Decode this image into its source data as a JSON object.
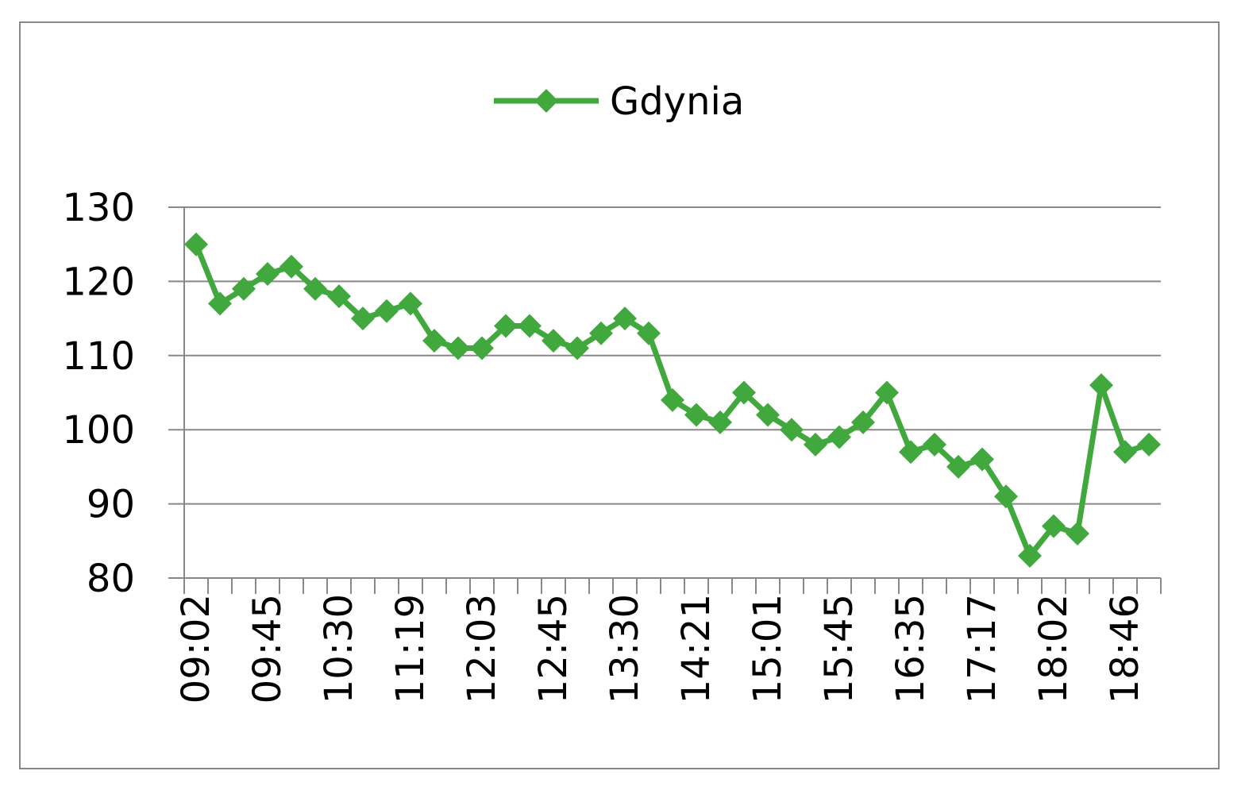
{
  "chart_data": {
    "type": "line",
    "categories": [
      "09:02",
      null,
      null,
      "09:45",
      null,
      null,
      "10:30",
      null,
      null,
      "11:19",
      null,
      null,
      "12:03",
      null,
      null,
      "12:45",
      null,
      null,
      "13:30",
      null,
      null,
      "14:21",
      null,
      null,
      "15:01",
      null,
      null,
      "15:45",
      null,
      null,
      "16:35",
      null,
      null,
      "17:17",
      null,
      null,
      "18:02",
      null,
      null,
      "18:46",
      null
    ],
    "series": [
      {
        "name": "Gdynia",
        "color": "#41a83e",
        "values": [
          125,
          117,
          119,
          121,
          122,
          119,
          118,
          115,
          116,
          117,
          112,
          111,
          111,
          114,
          114,
          112,
          111,
          113,
          115,
          113,
          104,
          102,
          101,
          105,
          102,
          100,
          98,
          99,
          101,
          105,
          97,
          98,
          95,
          96,
          91,
          83,
          87,
          86,
          106,
          97,
          98
        ]
      }
    ],
    "ylim": [
      80,
      130
    ],
    "yticks": [
      80,
      90,
      100,
      110,
      120,
      130
    ],
    "grid": true,
    "legend": "top"
  }
}
